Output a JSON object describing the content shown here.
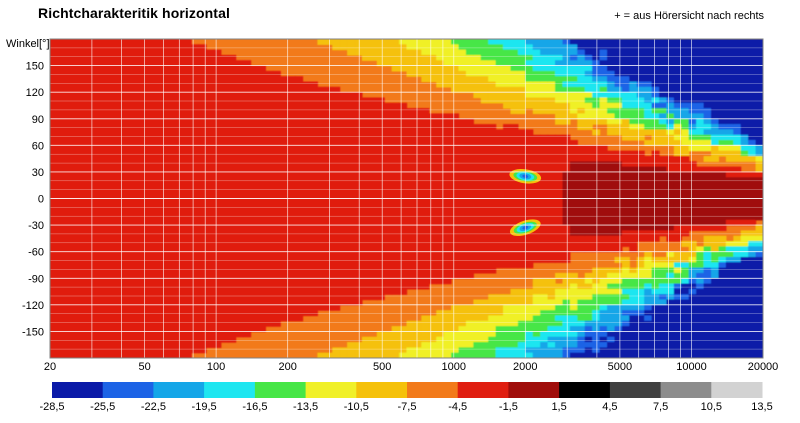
{
  "header": {
    "title": "Richtcharakteritik horizontal",
    "note": "+ = aus Hörersicht nach rechts"
  },
  "chart_data": {
    "type": "heatmap",
    "title": "Richtcharakteritik horizontal",
    "annotation": "+ = aus Hörersicht nach rechts",
    "xlabel": "",
    "ylabel": "Winkel[°]",
    "x_scale": "log",
    "xlim": [
      20,
      20000
    ],
    "ylim": [
      -180,
      180
    ],
    "x_ticks": [
      20,
      50,
      100,
      200,
      500,
      1000,
      2000,
      5000,
      10000,
      20000
    ],
    "y_ticks": [
      150,
      120,
      90,
      60,
      30,
      0,
      -30,
      -60,
      -90,
      -120,
      -150
    ],
    "grid": true,
    "colorbar": {
      "placement": "bottom",
      "levels": [
        -28.5,
        -25.5,
        -22.5,
        -19.5,
        -16.5,
        -13.5,
        -10.5,
        -7.5,
        -4.5,
        -1.5,
        1.5,
        4.5,
        7.5,
        10.5,
        13.5
      ],
      "labels": [
        "-28,5",
        "-25,5",
        "-22,5",
        "-19,5",
        "-16,5",
        "-13,5",
        "-10,5",
        "-7,5",
        "-4,5",
        "-1,5",
        "1,5",
        "4,5",
        "7,5",
        "10,5",
        "13,5"
      ],
      "colors": [
        "#0a1aa8",
        "#1c63e6",
        "#14a6e8",
        "#1ee6f0",
        "#46e646",
        "#f0f028",
        "#f5c10a",
        "#f27a1a",
        "#e01e10",
        "#a00d0a",
        "#000000",
        "#404040",
        "#8c8c8c",
        "#d2d2d2"
      ]
    },
    "features": [
      {
        "x": 2000,
        "y": 25,
        "level": -25
      },
      {
        "x": 2000,
        "y": -33,
        "level": -25
      }
    ]
  }
}
